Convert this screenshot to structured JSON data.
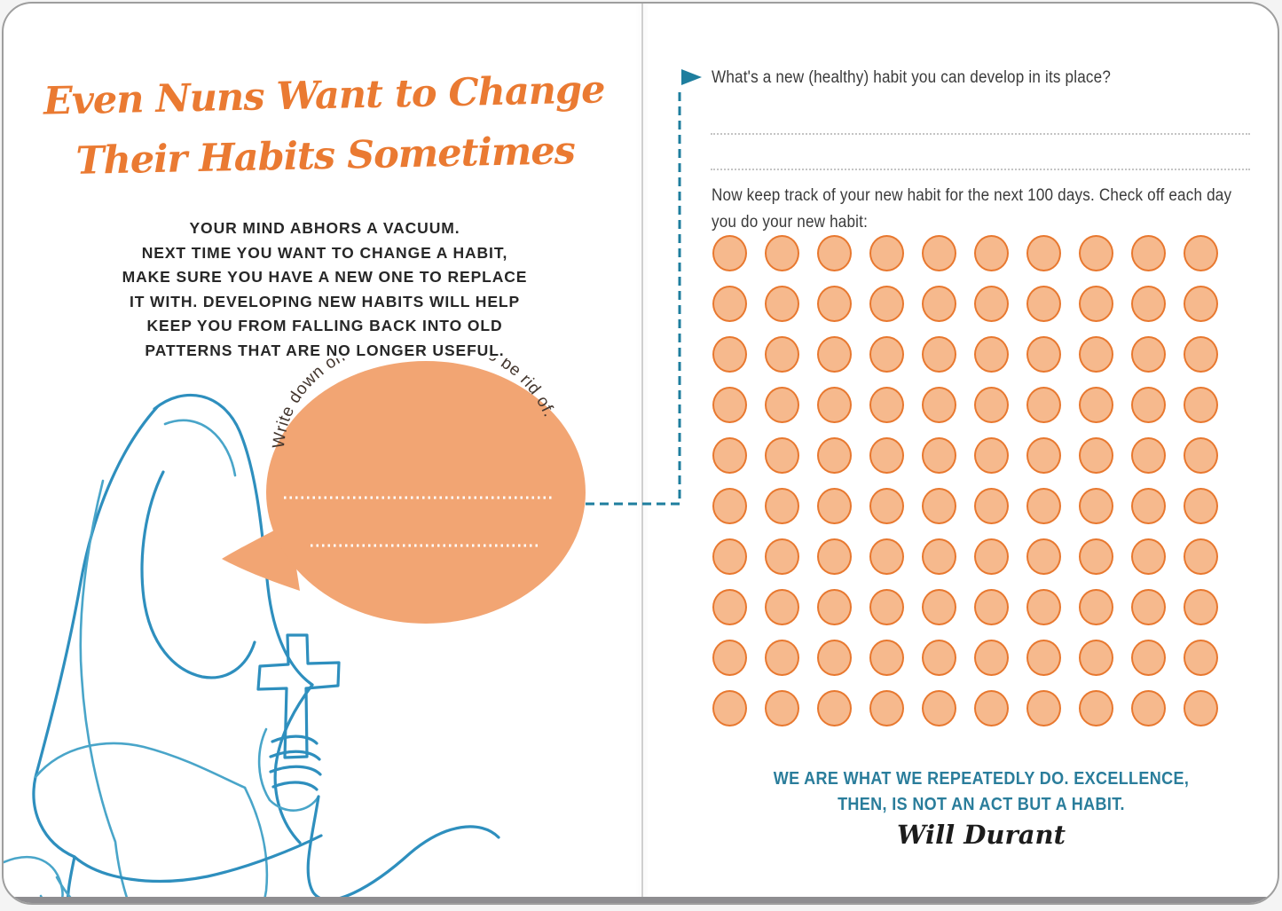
{
  "book": {
    "left_page": {
      "title": "Even Nuns Want to Change\nTheir Habits Sometimes",
      "intro": "YOUR MIND ABHORS A VACUUM.\nNEXT TIME YOU WANT TO CHANGE A HABIT,\nMAKE SURE YOU HAVE A NEW ONE TO REPLACE\nIT WITH. DEVELOPING NEW HABITS WILL HELP\nKEEP YOU FROM FALLING BACK INTO OLD\nPATTERNS THAT ARE NO LONGER USEFUL.",
      "illustration": "nun-continuous-line-drawing-holding-cross",
      "bubble": {
        "prompt": "Write down one habit you'd like to be rid of.",
        "write_lines": 2
      }
    },
    "right_page": {
      "pointer_icon": "dashed-arrow-connector",
      "question": "What's a new (healthy) habit you can develop in its place?",
      "write_lines": 2,
      "tracker_intro": "Now keep track of your new habit for the next 100 days. Check off each day you do your new habit:",
      "tracker": {
        "days_total": 100,
        "columns": 10,
        "rows": 10,
        "checked_count": 0
      },
      "quote": {
        "text": "WE ARE WHAT WE REPEATEDLY DO. EXCELLENCE,\nTHEN, IS NOT AN ACT BUT A HABIT.",
        "attribution": "Will Durant"
      }
    },
    "colors": {
      "title_orange": "#EA7A32",
      "bubble_orange": "#F2A573",
      "dot_fill": "#F6B98D",
      "dot_stroke": "#E8782F",
      "teal": "#1E7E9E",
      "quote_teal": "#2A7D9B",
      "sketch_blue": "#2E8FBE"
    }
  }
}
